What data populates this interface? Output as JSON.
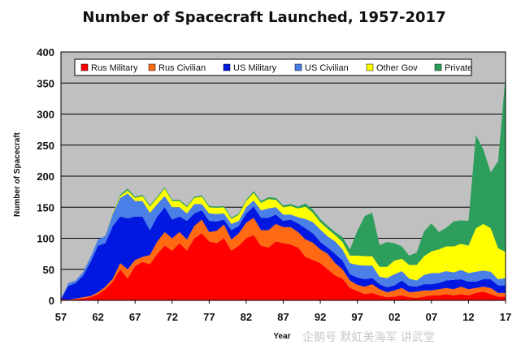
{
  "chart_data": {
    "type": "area",
    "stacked": true,
    "title": "Number of Spacecraft Launched, 1957-2017",
    "ylabel": "Number of Spacecraft",
    "xlabel": "Year",
    "ylim": [
      0,
      400
    ],
    "yticks": [
      "0",
      "50",
      "100",
      "150",
      "200",
      "250",
      "300",
      "350",
      "400"
    ],
    "xticks": [
      {
        "year": 1957,
        "label": "57"
      },
      {
        "year": 1962,
        "label": "62"
      },
      {
        "year": 1967,
        "label": "67"
      },
      {
        "year": 1972,
        "label": "72"
      },
      {
        "year": 1977,
        "label": "77"
      },
      {
        "year": 1982,
        "label": "82"
      },
      {
        "year": 1987,
        "label": "87"
      },
      {
        "year": 1992,
        "label": "92"
      },
      {
        "year": 1997,
        "label": "97"
      },
      {
        "year": 2002,
        "label": "02"
      },
      {
        "year": 2007,
        "label": "07"
      },
      {
        "year": 2012,
        "label": "12"
      },
      {
        "year": 2017,
        "label": "17"
      }
    ],
    "grid": true,
    "legend_position": "top",
    "x": [
      1957,
      1958,
      1959,
      1960,
      1961,
      1962,
      1963,
      1964,
      1965,
      1966,
      1967,
      1968,
      1969,
      1970,
      1971,
      1972,
      1973,
      1974,
      1975,
      1976,
      1977,
      1978,
      1979,
      1980,
      1981,
      1982,
      1983,
      1984,
      1985,
      1986,
      1987,
      1988,
      1989,
      1990,
      1991,
      1992,
      1993,
      1994,
      1995,
      1996,
      1997,
      1998,
      1999,
      2000,
      2001,
      2002,
      2003,
      2004,
      2005,
      2006,
      2007,
      2008,
      2009,
      2010,
      2011,
      2012,
      2013,
      2014,
      2015,
      2016,
      2017
    ],
    "series": [
      {
        "name": "Rus Military",
        "color": "#ff0000",
        "values": [
          2,
          1,
          2,
          3,
          5,
          10,
          18,
          30,
          50,
          35,
          55,
          62,
          58,
          75,
          88,
          80,
          92,
          80,
          100,
          108,
          95,
          92,
          100,
          80,
          88,
          100,
          105,
          88,
          85,
          95,
          92,
          90,
          85,
          70,
          65,
          60,
          50,
          40,
          35,
          20,
          15,
          10,
          12,
          8,
          5,
          6,
          8,
          5,
          4,
          6,
          8,
          8,
          10,
          8,
          10,
          8,
          12,
          14,
          10,
          6,
          6
        ]
      },
      {
        "name": "Rus Civilian",
        "color": "#ff6a13",
        "values": [
          0,
          0,
          1,
          2,
          2,
          3,
          4,
          5,
          10,
          15,
          10,
          8,
          15,
          20,
          22,
          20,
          18,
          18,
          20,
          22,
          15,
          20,
          22,
          18,
          20,
          25,
          28,
          25,
          28,
          28,
          26,
          28,
          25,
          28,
          28,
          22,
          25,
          20,
          15,
          12,
          10,
          12,
          14,
          10,
          8,
          10,
          12,
          8,
          10,
          10,
          8,
          10,
          10,
          10,
          12,
          10,
          8,
          8,
          10,
          6,
          6
        ]
      },
      {
        "name": "US Military",
        "color": "#0018e0",
        "values": [
          0,
          22,
          25,
          35,
          55,
          75,
          70,
          85,
          75,
          82,
          70,
          65,
          40,
          40,
          40,
          30,
          25,
          30,
          20,
          15,
          18,
          15,
          8,
          15,
          12,
          15,
          18,
          20,
          20,
          15,
          10,
          12,
          14,
          18,
          15,
          12,
          10,
          15,
          14,
          10,
          12,
          12,
          10,
          8,
          8,
          8,
          12,
          10,
          8,
          10,
          10,
          10,
          12,
          15,
          12,
          12,
          10,
          12,
          14,
          12,
          12
        ]
      },
      {
        "name": "US Civilian",
        "color": "#4a7fe8",
        "values": [
          0,
          5,
          4,
          6,
          8,
          10,
          12,
          20,
          30,
          40,
          25,
          25,
          28,
          20,
          18,
          20,
          15,
          12,
          15,
          10,
          12,
          12,
          10,
          10,
          8,
          10,
          10,
          12,
          15,
          12,
          10,
          8,
          10,
          15,
          18,
          20,
          18,
          20,
          18,
          18,
          20,
          22,
          20,
          12,
          15,
          18,
          15,
          12,
          10,
          15,
          18,
          16,
          15,
          12,
          15,
          14,
          16,
          14,
          12,
          10,
          12
        ]
      },
      {
        "name": "Other Gov",
        "color": "#ffff00",
        "values": [
          0,
          0,
          0,
          0,
          0,
          0,
          0,
          2,
          3,
          5,
          5,
          8,
          10,
          10,
          12,
          10,
          10,
          10,
          10,
          12,
          10,
          10,
          10,
          8,
          10,
          10,
          12,
          12,
          15,
          12,
          12,
          14,
          14,
          20,
          15,
          12,
          12,
          10,
          12,
          12,
          15,
          15,
          15,
          16,
          18,
          22,
          20,
          22,
          25,
          30,
          35,
          38,
          40,
          42,
          42,
          44,
          70,
          75,
          70,
          50,
          42
        ]
      },
      {
        "name": "Private",
        "color": "#2e9e5c",
        "values": [
          0,
          0,
          0,
          0,
          0,
          0,
          0,
          0,
          2,
          3,
          2,
          2,
          2,
          2,
          2,
          2,
          2,
          2,
          2,
          2,
          2,
          2,
          2,
          2,
          2,
          2,
          3,
          3,
          3,
          3,
          3,
          3,
          3,
          5,
          5,
          5,
          5,
          5,
          8,
          10,
          40,
          65,
          70,
          35,
          40,
          28,
          20,
          15,
          20,
          40,
          45,
          28,
          30,
          40,
          38,
          40,
          150,
          120,
          90,
          140,
          285
        ]
      }
    ]
  },
  "watermark": "企鹅号 默虹美海军 讲武堂"
}
